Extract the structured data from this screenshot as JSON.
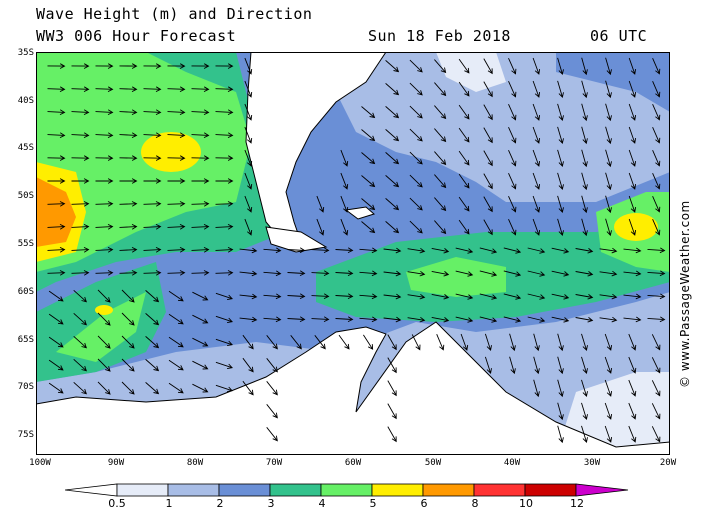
{
  "header": {
    "title_line1": "Wave Height (m) and Direction",
    "title_line2": "WW3 006 Hour Forecast",
    "date": "Sun 18 Feb 2018",
    "time": "06 UTC"
  },
  "axes": {
    "lat_labels": [
      "35S",
      "40S",
      "45S",
      "50S",
      "55S",
      "60S",
      "65S",
      "70S",
      "75S"
    ],
    "lon_labels": [
      "100W",
      "90W",
      "80W",
      "70W",
      "60W",
      "50W",
      "40W",
      "30W",
      "20W"
    ]
  },
  "legend": {
    "labels": [
      "0.5",
      "1",
      "2",
      "3",
      "4",
      "5",
      "6",
      "8",
      "10",
      "12"
    ],
    "colors": [
      "#e6ecf8",
      "#a8bde6",
      "#6a8fd6",
      "#33c28c",
      "#66f066",
      "#ffee00",
      "#ff9900",
      "#ff3333",
      "#cc0000",
      "#cc00cc"
    ]
  },
  "copyright": "© www.PassageWeather.com",
  "colors": {
    "land": "#ffffff",
    "sea_low": "#a8bde6",
    "sea_mid": "#6a8fd6",
    "coast": "#000000"
  },
  "icons": [
    "wind-arrow-icon"
  ]
}
